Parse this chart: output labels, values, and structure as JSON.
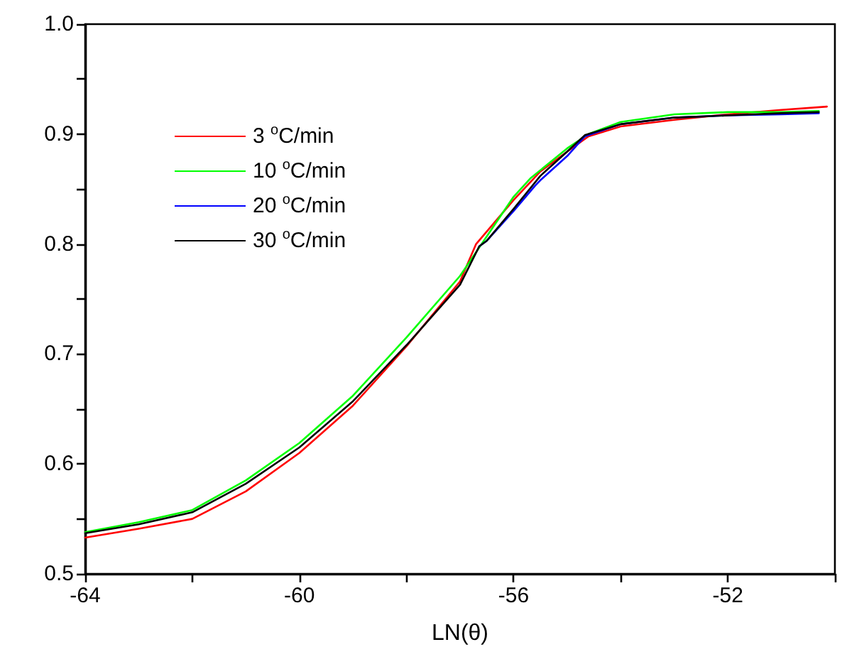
{
  "chart_data": {
    "type": "line",
    "xlabel": "LN(θ)",
    "xlim": [
      -64,
      -50
    ],
    "xticks": [
      -64,
      {
        "value": -62,
        "label": null
      },
      -60,
      {
        "value": -58,
        "label": null
      },
      -56,
      {
        "value": -54,
        "label": null
      },
      -52,
      {
        "value": -50,
        "label": null
      }
    ],
    "ylim": [
      0.5,
      1.0
    ],
    "yticks": [
      {
        "value": 0.5,
        "label": "0.5"
      },
      {
        "value": 0.55,
        "label": null
      },
      {
        "value": 0.6,
        "label": "0.6"
      },
      {
        "value": 0.65,
        "label": null
      },
      {
        "value": 0.7,
        "label": "0.7"
      },
      {
        "value": 0.75,
        "label": null
      },
      {
        "value": 0.8,
        "label": "0.8"
      },
      {
        "value": 0.85,
        "label": null
      },
      {
        "value": 0.9,
        "label": "0.9"
      },
      {
        "value": 0.95,
        "label": null
      },
      {
        "value": 1.0,
        "label": "1.0"
      }
    ],
    "grid": false,
    "legend": "top left",
    "marker": "none",
    "line_style": "solid",
    "series": [
      {
        "name": "3 $^{o}$C/min",
        "color": "#ff0000",
        "x": [
          -64,
          -63,
          -62,
          -61,
          -60,
          -59,
          -58,
          -57,
          -56.7,
          -56,
          -55.5,
          -55,
          -54.6,
          -54,
          -53,
          -52,
          -51,
          -50.15
        ],
        "values": [
          0.533,
          0.541,
          0.55,
          0.575,
          0.61,
          0.653,
          0.707,
          0.766,
          0.8,
          0.84,
          0.866,
          0.884,
          0.898,
          0.907,
          0.913,
          0.918,
          0.922,
          0.925
        ]
      },
      {
        "name": "10 $^{o}$C/min",
        "color": "#00ff00",
        "x": [
          -64,
          -63,
          -62,
          -61,
          -60,
          -59,
          -58,
          -57,
          -56,
          -55.68,
          -55,
          -54.6,
          -54,
          -53,
          -52,
          -51,
          -50.3
        ],
        "values": [
          0.538,
          0.547,
          0.558,
          0.585,
          0.619,
          0.662,
          0.715,
          0.771,
          0.843,
          0.86,
          0.887,
          0.9,
          0.911,
          0.918,
          0.92,
          0.92,
          0.921
        ]
      },
      {
        "name": "20 $^{o}$C/min",
        "color": "#0000ff",
        "x": [
          -56.64,
          -56.5,
          -56,
          -55.6,
          -55.5,
          -55,
          -54.67,
          -54,
          -53,
          -52,
          -51,
          -50.3
        ],
        "values": [
          0.798,
          0.803,
          0.83,
          0.853,
          0.858,
          0.88,
          0.898,
          0.909,
          0.915,
          0.917,
          0.918,
          0.919
        ]
      },
      {
        "name": "30 $^{o}$C/min",
        "color": "#000000",
        "x": [
          -64,
          -63,
          -62,
          -61,
          -60,
          -59,
          -58,
          -57,
          -56.64,
          -56.5,
          -56,
          -55.5,
          -55,
          -54.67,
          -54,
          -53,
          -52,
          -51,
          -50.3
        ],
        "values": [
          0.537,
          0.545,
          0.556,
          0.582,
          0.615,
          0.657,
          0.708,
          0.763,
          0.798,
          0.803,
          0.832,
          0.862,
          0.884,
          0.899,
          0.909,
          0.915,
          0.917,
          0.919,
          0.92
        ]
      }
    ]
  }
}
